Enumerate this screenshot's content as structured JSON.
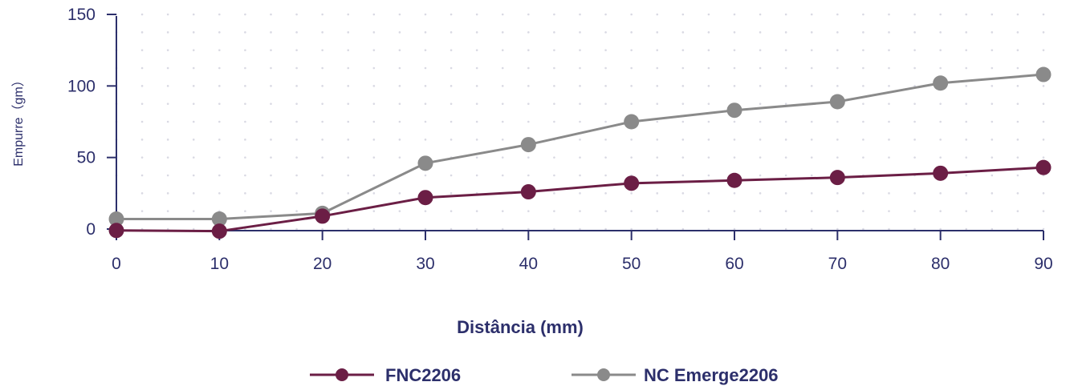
{
  "chart_data": {
    "type": "line",
    "x": [
      0,
      10,
      20,
      30,
      40,
      50,
      60,
      70,
      80,
      90
    ],
    "xlabel": "Distância (mm)",
    "ylabel": "Empurre（gm）",
    "xlim": [
      0,
      90
    ],
    "ylim": [
      0,
      150
    ],
    "x_ticks": [
      "0",
      "10",
      "20",
      "30",
      "40",
      "50",
      "60",
      "70",
      "80",
      "90"
    ],
    "y_ticks": [
      "0",
      "50",
      "100",
      "150"
    ],
    "grid": "dotted",
    "legend_position": "bottom-center",
    "series": [
      {
        "name": "FNC2206",
        "color": "#6b1e45",
        "values": [
          -1,
          -1.5,
          9,
          22,
          26,
          32,
          34,
          36,
          39,
          43
        ]
      },
      {
        "name": "NC Emerge2206",
        "color": "#8a8a8a",
        "values": [
          7,
          7,
          11,
          46,
          59,
          75,
          83,
          89,
          102,
          108
        ]
      }
    ]
  }
}
